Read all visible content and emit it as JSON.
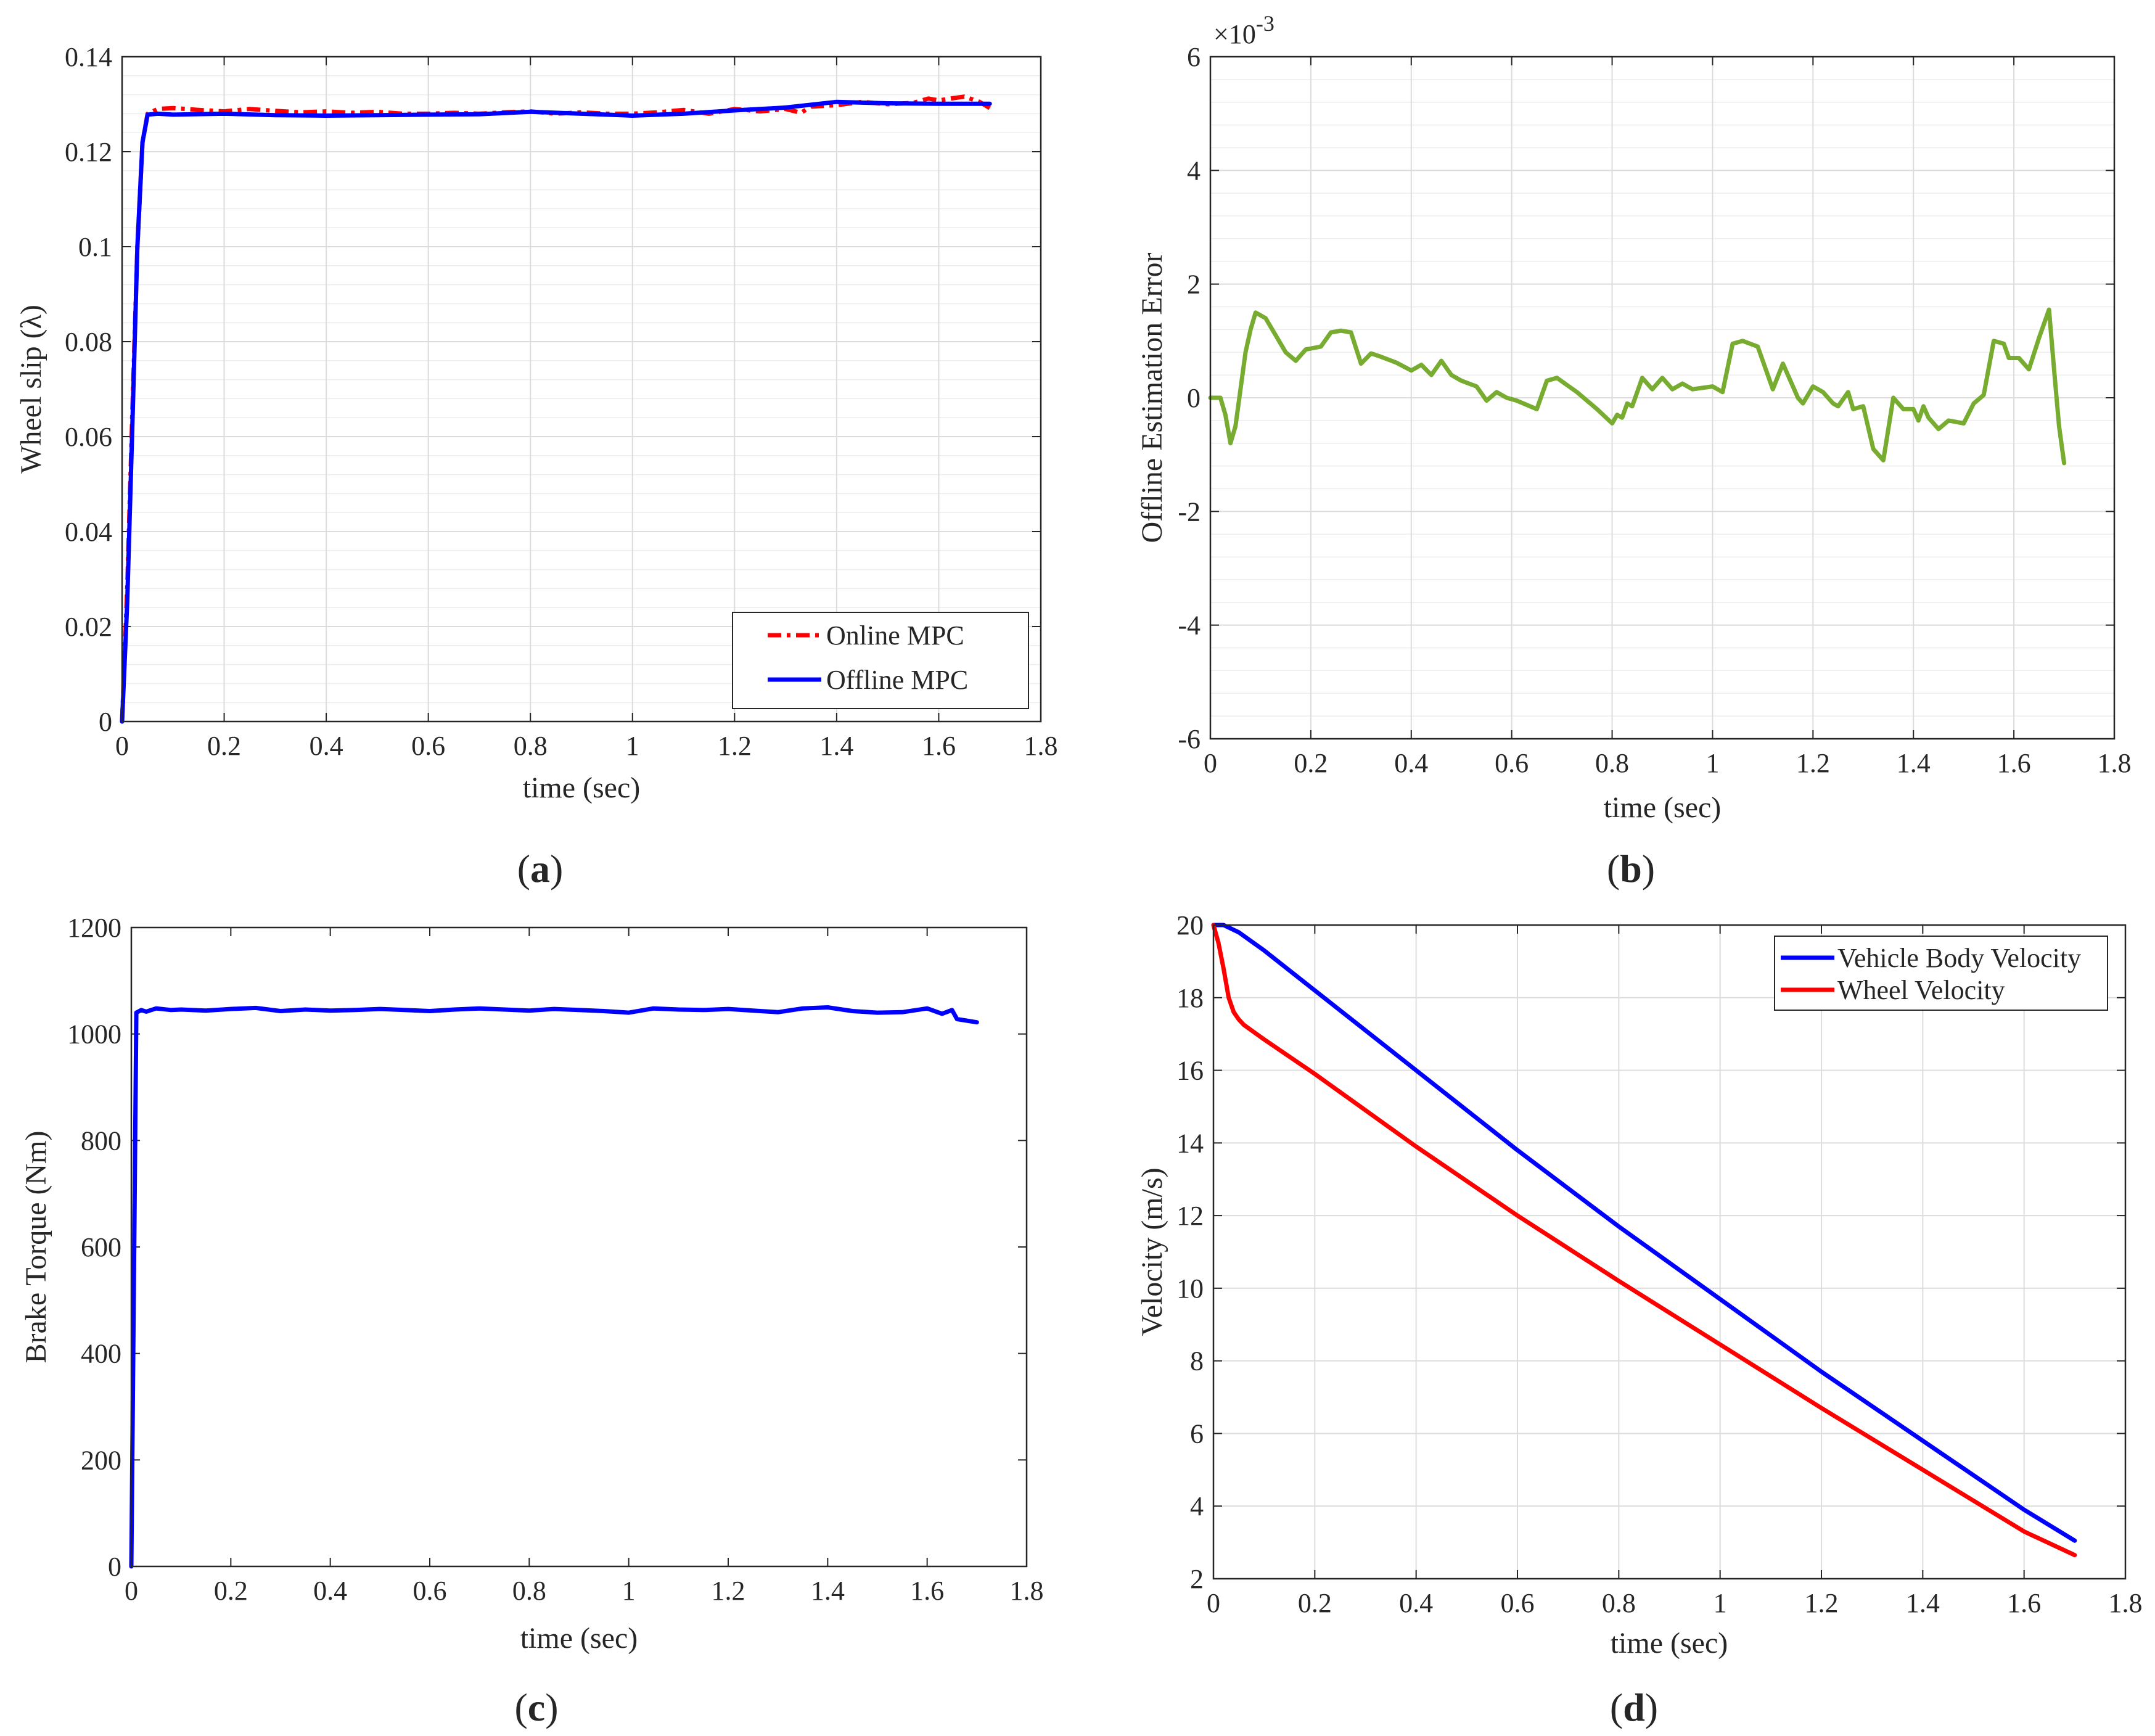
{
  "colors": {
    "online_mpc": "#ff0000",
    "offline_mpc": "#0000ff",
    "error": "#77ac30",
    "torque": "#0000ff",
    "vehicle_velocity": "#0000ff",
    "wheel_velocity": "#ff0000",
    "axis": "#262626",
    "grid": "#dcdcdc"
  },
  "chart_data": [
    {
      "id": "a",
      "panel_label": "a",
      "type": "line",
      "xlabel": "time (sec)",
      "ylabel": "Wheel slip (λ)",
      "xlim": [
        0,
        1.8
      ],
      "ylim": [
        0,
        0.14
      ],
      "xticks": [
        0,
        0.2,
        0.4,
        0.6,
        0.8,
        1,
        1.2,
        1.4,
        1.6,
        1.8
      ],
      "xtick_labels": [
        "0",
        "0.2",
        "0.4",
        "0.6",
        "0.8",
        "1",
        "1.2",
        "1.4",
        "1.6",
        "1.8"
      ],
      "yticks": [
        0,
        0.02,
        0.04,
        0.06,
        0.08,
        0.1,
        0.12,
        0.14
      ],
      "ytick_labels": [
        "0",
        "0.02",
        "0.04",
        "0.06",
        "0.08",
        "0.1",
        "0.12",
        "0.14"
      ],
      "grid": true,
      "minor_grid_y": true,
      "legend": "bottom-right",
      "series": [
        {
          "name": "Online MPC",
          "style": "dashdot",
          "color_key": "online_mpc",
          "x": [
            0,
            0.01,
            0.02,
            0.03,
            0.04,
            0.05,
            0.07,
            0.1,
            0.15,
            0.2,
            0.25,
            0.3,
            0.35,
            0.4,
            0.45,
            0.5,
            0.55,
            0.6,
            0.65,
            0.7,
            0.75,
            0.8,
            0.85,
            0.9,
            0.95,
            1.0,
            1.05,
            1.1,
            1.15,
            1.2,
            1.25,
            1.3,
            1.33,
            1.35,
            1.4,
            1.45,
            1.5,
            1.55,
            1.58,
            1.6,
            1.63,
            1.65,
            1.68,
            1.7
          ],
          "y": [
            0,
            0.028,
            0.065,
            0.1,
            0.122,
            0.128,
            0.129,
            0.1292,
            0.1288,
            0.1285,
            0.129,
            0.1286,
            0.1283,
            0.1285,
            0.1282,
            0.1284,
            0.128,
            0.128,
            0.1282,
            0.128,
            0.1283,
            0.1285,
            0.128,
            0.1283,
            0.128,
            0.128,
            0.1283,
            0.1288,
            0.128,
            0.129,
            0.1285,
            0.129,
            0.1282,
            0.1295,
            0.1298,
            0.1305,
            0.13,
            0.1303,
            0.1312,
            0.1308,
            0.1313,
            0.1316,
            0.1305,
            0.1292
          ]
        },
        {
          "name": "Offline MPC",
          "style": "solid",
          "color_key": "offline_mpc",
          "x": [
            0,
            0.01,
            0.02,
            0.03,
            0.04,
            0.05,
            0.07,
            0.1,
            0.2,
            0.3,
            0.4,
            0.5,
            0.6,
            0.7,
            0.8,
            0.9,
            1.0,
            1.1,
            1.2,
            1.3,
            1.4,
            1.5,
            1.6,
            1.7
          ],
          "y": [
            0,
            0.025,
            0.062,
            0.1,
            0.122,
            0.1278,
            0.128,
            0.1278,
            0.128,
            0.1277,
            0.1276,
            0.1277,
            0.1278,
            0.1279,
            0.1284,
            0.128,
            0.1276,
            0.128,
            0.1287,
            0.1293,
            0.1305,
            0.1302,
            0.1301,
            0.1301
          ]
        }
      ]
    },
    {
      "id": "b",
      "panel_label": "b",
      "type": "line",
      "xlabel": "time (sec)",
      "ylabel": "Offline Estimation Error",
      "exponent_label": "×10",
      "exponent_power": "-3",
      "xlim": [
        0,
        1.8
      ],
      "ylim": [
        -6,
        6
      ],
      "xticks": [
        0,
        0.2,
        0.4,
        0.6,
        0.8,
        1,
        1.2,
        1.4,
        1.6,
        1.8
      ],
      "xtick_labels": [
        "0",
        "0.2",
        "0.4",
        "0.6",
        "0.8",
        "1",
        "1.2",
        "1.4",
        "1.6",
        "1.8"
      ],
      "yticks": [
        -6,
        -4,
        -2,
        0,
        2,
        4,
        6
      ],
      "ytick_labels": [
        "-6",
        "-4",
        "-2",
        "0",
        "2",
        "4",
        "6"
      ],
      "grid": true,
      "minor_grid_y": true,
      "series": [
        {
          "name": "Offline Estimation Error",
          "style": "solid",
          "color_key": "error",
          "x": [
            0,
            0.02,
            0.03,
            0.04,
            0.05,
            0.07,
            0.08,
            0.09,
            0.11,
            0.13,
            0.15,
            0.17,
            0.19,
            0.22,
            0.24,
            0.26,
            0.28,
            0.3,
            0.32,
            0.34,
            0.37,
            0.4,
            0.42,
            0.44,
            0.46,
            0.48,
            0.5,
            0.53,
            0.55,
            0.57,
            0.59,
            0.61,
            0.65,
            0.67,
            0.69,
            0.73,
            0.77,
            0.8,
            0.81,
            0.82,
            0.83,
            0.84,
            0.86,
            0.88,
            0.9,
            0.92,
            0.94,
            0.96,
            1.0,
            1.02,
            1.04,
            1.06,
            1.09,
            1.12,
            1.14,
            1.17,
            1.18,
            1.2,
            1.22,
            1.24,
            1.25,
            1.27,
            1.28,
            1.3,
            1.32,
            1.34,
            1.36,
            1.38,
            1.4,
            1.41,
            1.42,
            1.43,
            1.45,
            1.47,
            1.5,
            1.52,
            1.54,
            1.56,
            1.58,
            1.59,
            1.61,
            1.63,
            1.65,
            1.67,
            1.68,
            1.69,
            1.7
          ],
          "y": [
            0,
            0,
            -0.3,
            -0.8,
            -0.5,
            0.8,
            1.2,
            1.5,
            1.4,
            1.1,
            0.8,
            0.65,
            0.85,
            0.9,
            1.15,
            1.18,
            1.15,
            0.6,
            0.78,
            0.72,
            0.62,
            0.48,
            0.58,
            0.4,
            0.65,
            0.4,
            0.3,
            0.2,
            -0.05,
            0.1,
            0.0,
            -0.05,
            -0.2,
            0.3,
            0.35,
            0.1,
            -0.2,
            -0.45,
            -0.3,
            -0.35,
            -0.1,
            -0.15,
            0.35,
            0.15,
            0.35,
            0.15,
            0.25,
            0.15,
            0.2,
            0.1,
            0.95,
            1.0,
            0.9,
            0.15,
            0.6,
            0.0,
            -0.1,
            0.2,
            0.1,
            -0.1,
            -0.15,
            0.1,
            -0.2,
            -0.15,
            -0.9,
            -1.1,
            0.0,
            -0.2,
            -0.2,
            -0.4,
            -0.15,
            -0.35,
            -0.55,
            -0.4,
            -0.45,
            -0.1,
            0.05,
            1.0,
            0.95,
            0.7,
            0.7,
            0.5,
            1.05,
            1.55,
            0.5,
            -0.5,
            -1.15
          ]
        }
      ]
    },
    {
      "id": "c",
      "panel_label": "c",
      "type": "line",
      "xlabel": "time (sec)",
      "ylabel": "Brake Torque (Nm)",
      "xlim": [
        0,
        1.8
      ],
      "ylim": [
        0,
        1200
      ],
      "xticks": [
        0,
        0.2,
        0.4,
        0.6,
        0.8,
        1,
        1.2,
        1.4,
        1.6,
        1.8
      ],
      "xtick_labels": [
        "0",
        "0.2",
        "0.4",
        "0.6",
        "0.8",
        "1",
        "1.2",
        "1.4",
        "1.6",
        "1.8"
      ],
      "yticks": [
        0,
        200,
        400,
        600,
        800,
        1000,
        1200
      ],
      "ytick_labels": [
        "0",
        "200",
        "400",
        "600",
        "800",
        "1000",
        "1200"
      ],
      "grid": false,
      "series": [
        {
          "name": "Brake Torque",
          "style": "solid",
          "color_key": "torque",
          "x": [
            0,
            0.01,
            0.02,
            0.03,
            0.05,
            0.08,
            0.1,
            0.15,
            0.2,
            0.25,
            0.3,
            0.35,
            0.4,
            0.45,
            0.5,
            0.55,
            0.6,
            0.65,
            0.7,
            0.75,
            0.8,
            0.85,
            0.9,
            0.95,
            1.0,
            1.05,
            1.1,
            1.15,
            1.2,
            1.25,
            1.3,
            1.35,
            1.4,
            1.45,
            1.5,
            1.55,
            1.6,
            1.63,
            1.65,
            1.66,
            1.7
          ],
          "y": [
            0,
            1040,
            1045,
            1042,
            1048,
            1045,
            1046,
            1044,
            1047,
            1049,
            1043,
            1046,
            1044,
            1045,
            1047,
            1045,
            1043,
            1046,
            1048,
            1046,
            1044,
            1047,
            1045,
            1043,
            1040,
            1048,
            1046,
            1045,
            1047,
            1044,
            1041,
            1048,
            1050,
            1043,
            1040,
            1041,
            1048,
            1038,
            1045,
            1028,
            1022
          ]
        }
      ]
    },
    {
      "id": "d",
      "panel_label": "d",
      "type": "line",
      "xlabel": "time (sec)",
      "ylabel": "Velocity (m/s)",
      "xlim": [
        0,
        1.8
      ],
      "ylim": [
        2,
        20
      ],
      "xticks": [
        0,
        0.2,
        0.4,
        0.6,
        0.8,
        1,
        1.2,
        1.4,
        1.6,
        1.8
      ],
      "xtick_labels": [
        "0",
        "0.2",
        "0.4",
        "0.6",
        "0.8",
        "1",
        "1.2",
        "1.4",
        "1.6",
        "1.8"
      ],
      "yticks": [
        2,
        4,
        6,
        8,
        10,
        12,
        14,
        16,
        18,
        20
      ],
      "ytick_labels": [
        "2",
        "4",
        "6",
        "8",
        "10",
        "12",
        "14",
        "16",
        "18",
        "20"
      ],
      "grid": true,
      "legend": "top-right",
      "series": [
        {
          "name": "Vehicle Body Velocity",
          "style": "solid",
          "color_key": "vehicle_velocity",
          "x": [
            0,
            0.02,
            0.05,
            0.1,
            0.2,
            0.4,
            0.6,
            0.8,
            1.0,
            1.2,
            1.4,
            1.6,
            1.7
          ],
          "y": [
            20,
            20.0,
            19.8,
            19.3,
            18.2,
            16.0,
            13.8,
            11.7,
            9.7,
            7.7,
            5.8,
            3.9,
            3.05
          ]
        },
        {
          "name": "Wheel Velocity",
          "style": "solid",
          "color_key": "wheel_velocity",
          "x": [
            0,
            0.01,
            0.02,
            0.03,
            0.04,
            0.05,
            0.06,
            0.08,
            0.1,
            0.2,
            0.4,
            0.6,
            0.8,
            1.0,
            1.2,
            1.4,
            1.6,
            1.7
          ],
          "y": [
            20,
            19.5,
            18.8,
            18.0,
            17.6,
            17.4,
            17.25,
            17.05,
            16.85,
            15.9,
            13.9,
            12.0,
            10.2,
            8.45,
            6.7,
            5.0,
            3.3,
            2.65
          ]
        }
      ]
    }
  ]
}
